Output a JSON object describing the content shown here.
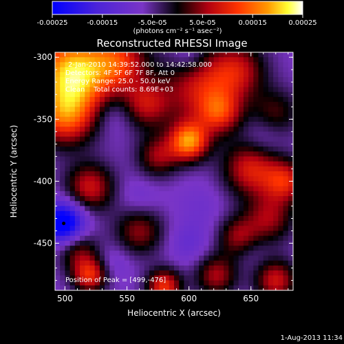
{
  "colorbar": {
    "ticks": [
      "-0.00025",
      "-0.00015",
      "-5.0e-05",
      "5.0e-05",
      "0.00015",
      "0.00025"
    ],
    "tick_values": [
      -0.00025,
      -0.00015,
      -5e-05,
      5e-05,
      0.00015,
      0.00025
    ],
    "range": [
      -0.00025,
      0.00025
    ],
    "unit_label": "(photons cm⁻² s⁻¹ asec⁻²)"
  },
  "footer": {
    "date": "1-Aug-2013 11:34"
  },
  "chart_data": {
    "type": "heatmap",
    "title": "Reconstructed RHESSI Image",
    "xlabel": "Heliocentric X (arcsec)",
    "ylabel": "Heliocentric Y (arcsec)",
    "xlim": [
      492,
      684
    ],
    "ylim": [
      -488,
      -296
    ],
    "x_ticks": [
      "500",
      "550",
      "600",
      "650"
    ],
    "x_tick_values": [
      500,
      550,
      600,
      650
    ],
    "y_ticks": [
      "-300",
      "-350",
      "-400",
      "-450"
    ],
    "y_tick_values": [
      -300,
      -350,
      -400,
      -450
    ],
    "annotations": [
      "2-Jan-2010 14:39:52.000 to 14:42:58.000",
      "Detectors: 4F 5F 6F 7F 8F, Att 0",
      "Energy Range: 25.0 - 50.0 keV",
      "Clean    Total counts: 8.69E+03"
    ],
    "peak_label": "Position of Peak = [499,-476]",
    "peak": [
      499,
      -476
    ],
    "marker": [
      499,
      -434
    ],
    "features": [
      {
        "x": 507,
        "y": -314,
        "intensity": 0.00026,
        "width": 24
      },
      {
        "x": 500,
        "y": -350,
        "intensity": 0.00012,
        "width": 16
      },
      {
        "x": 545,
        "y": -302,
        "intensity": 0.0001,
        "width": 16
      },
      {
        "x": 565,
        "y": -338,
        "intensity": 0.0001,
        "width": 14
      },
      {
        "x": 610,
        "y": -325,
        "intensity": 0.00012,
        "width": 22
      },
      {
        "x": 640,
        "y": -310,
        "intensity": 9e-05,
        "width": 16
      },
      {
        "x": 600,
        "y": -368,
        "intensity": 0.0002,
        "width": 11
      },
      {
        "x": 625,
        "y": -345,
        "intensity": 0.0001,
        "width": 12
      },
      {
        "x": 670,
        "y": -345,
        "intensity": 6e-05,
        "width": 14
      },
      {
        "x": 650,
        "y": -390,
        "intensity": 0.00013,
        "width": 16
      },
      {
        "x": 678,
        "y": -400,
        "intensity": 0.00012,
        "width": 12
      },
      {
        "x": 520,
        "y": -405,
        "intensity": 0.00012,
        "width": 14
      },
      {
        "x": 575,
        "y": -380,
        "intensity": 9e-05,
        "width": 12
      },
      {
        "x": 560,
        "y": -440,
        "intensity": 9e-05,
        "width": 14
      },
      {
        "x": 640,
        "y": -445,
        "intensity": 9e-05,
        "width": 12
      },
      {
        "x": 665,
        "y": -430,
        "intensity": 9e-05,
        "width": 14
      },
      {
        "x": 510,
        "y": -455,
        "intensity": 8e-05,
        "width": 12
      },
      {
        "x": 520,
        "y": -476,
        "intensity": 0.00014,
        "width": 10
      },
      {
        "x": 580,
        "y": -485,
        "intensity": 0.00015,
        "width": 10
      },
      {
        "x": 622,
        "y": -476,
        "intensity": 0.0001,
        "width": 12
      },
      {
        "x": 670,
        "y": -480,
        "intensity": 0.00012,
        "width": 12
      },
      {
        "x": 499,
        "y": -434,
        "intensity": -0.00026,
        "width": 12
      },
      {
        "x": 540,
        "y": -345,
        "intensity": -8e-05,
        "width": 12
      },
      {
        "x": 600,
        "y": -300,
        "intensity": -8e-05,
        "width": 10
      },
      {
        "x": 660,
        "y": -365,
        "intensity": -7e-05,
        "width": 12
      },
      {
        "x": 560,
        "y": -415,
        "intensity": -6e-05,
        "width": 12
      },
      {
        "x": 610,
        "y": -420,
        "intensity": -5e-05,
        "width": 14
      },
      {
        "x": 540,
        "y": -465,
        "intensity": -6e-05,
        "width": 10
      },
      {
        "x": 600,
        "y": -450,
        "intensity": -7e-05,
        "width": 12
      },
      {
        "x": 650,
        "y": -455,
        "intensity": -5e-05,
        "width": 10
      }
    ],
    "colors": {
      "colorbar_low": "#0000ff",
      "colorbar_mid_low": "#7a35c6",
      "colorbar_mid": "#000000",
      "colorbar_high": "#ffff00",
      "colorbar_top": "#ffffff",
      "marker": "#000000"
    }
  }
}
